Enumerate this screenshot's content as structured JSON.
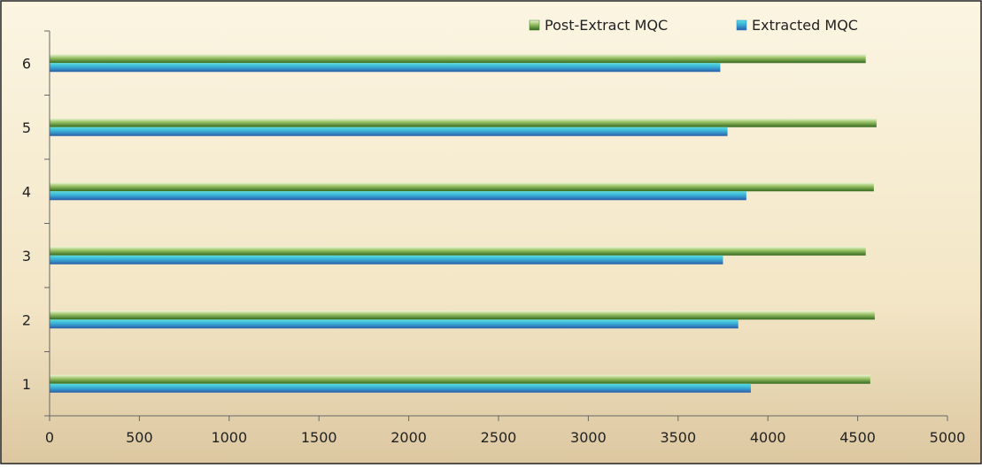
{
  "chart_data": {
    "type": "bar",
    "orientation": "horizontal",
    "categories": [
      "1",
      "2",
      "3",
      "4",
      "5",
      "6"
    ],
    "series": [
      {
        "name": "Post-Extract MQC",
        "values": [
          4570,
          4595,
          4545,
          4590,
          4605,
          4545
        ],
        "color": "#3f7a2a"
      },
      {
        "name": "Extracted MQC",
        "values": [
          3905,
          3835,
          3750,
          3880,
          3775,
          3735
        ],
        "color": "#2f86c4"
      }
    ],
    "xlim": [
      0,
      5000
    ],
    "x_ticks": [
      0,
      500,
      1000,
      1500,
      2000,
      2500,
      3000,
      3500,
      4000,
      4500,
      5000
    ],
    "title": "",
    "xlabel": "",
    "ylabel": "",
    "grid": false,
    "legend_position": "top-right"
  }
}
